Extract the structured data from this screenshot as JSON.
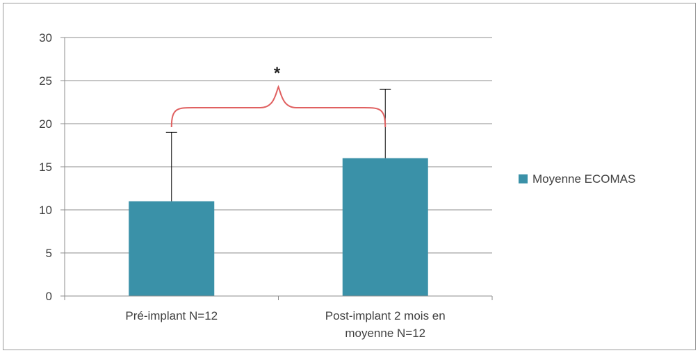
{
  "chart_data": {
    "type": "bar",
    "categories": [
      [
        "Pré-implant N=12"
      ],
      [
        "Post-implant 2 mois en",
        "moyenne N=12"
      ]
    ],
    "series": [
      {
        "name": "Moyenne ECOMAS",
        "values": [
          11,
          16
        ],
        "error_upper": [
          19,
          24
        ],
        "color": "#3a91a8"
      }
    ],
    "ylim": [
      0,
      30
    ],
    "yticks": [
      0,
      5,
      10,
      15,
      20,
      25,
      30
    ],
    "grid": true,
    "legend_position": "right",
    "annotation": {
      "text": "*",
      "type": "brace",
      "between": [
        0,
        1
      ],
      "color": "#e06060"
    }
  }
}
